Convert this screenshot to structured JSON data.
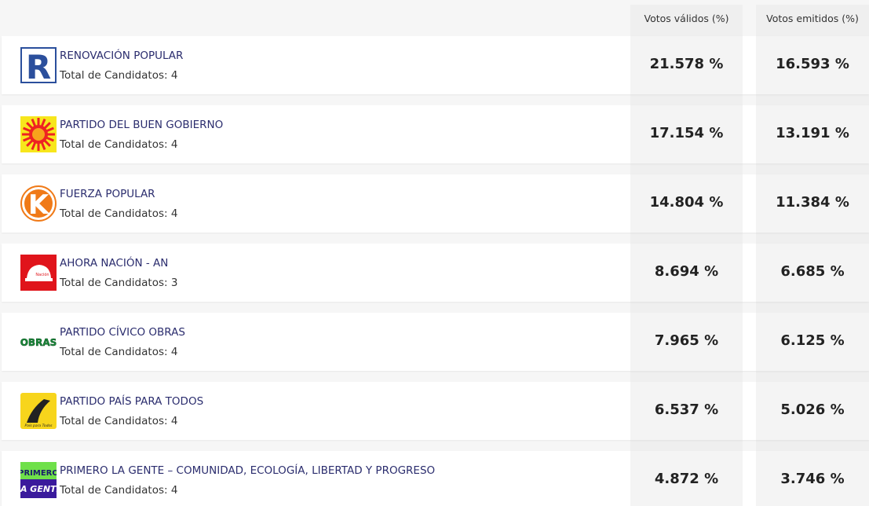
{
  "header": {
    "columns": [
      "Votos válidos (%)",
      "Votos emitidos (%)"
    ]
  },
  "table": {
    "rows": [
      {
        "name": "RENOVACIÓN POPULAR",
        "candidates": "Total de Candidatos: 4",
        "valid": "21.578 %",
        "emitted": "16.593 %",
        "logo_text": [
          "R"
        ]
      },
      {
        "name": "PARTIDO DEL BUEN GOBIERNO",
        "candidates": "Total de Candidatos: 4",
        "valid": "17.154 %",
        "emitted": "13.191 %",
        "logo_text": []
      },
      {
        "name": "FUERZA POPULAR",
        "candidates": "Total de Candidatos: 4",
        "valid": "14.804 %",
        "emitted": "11.384 %",
        "logo_text": [
          "K"
        ]
      },
      {
        "name": "AHORA NACIÓN - AN",
        "candidates": "Total de Candidatos: 3",
        "valid": "8.694 %",
        "emitted": "6.685 %",
        "logo_text": [
          "Nación"
        ]
      },
      {
        "name": "PARTIDO CÍVICO OBRAS",
        "candidates": "Total de Candidatos: 4",
        "valid": "7.965 %",
        "emitted": "6.125 %",
        "logo_text": [
          "OBRAS"
        ]
      },
      {
        "name": "PARTIDO PAÍS PARA TODOS",
        "candidates": "Total de Candidatos: 4",
        "valid": "6.537 %",
        "emitted": "5.026 %",
        "logo_text": [
          "País para Todos"
        ]
      },
      {
        "name": "PRIMERO LA GENTE – COMUNIDAD, ECOLOGÍA, LIBERTAD Y PROGRESO",
        "candidates": "Total de Candidatos: 4",
        "valid": "4.872 %",
        "emitted": "3.746 %",
        "logo_text": [
          "PRIMERO",
          "LA GENTE"
        ]
      }
    ]
  }
}
